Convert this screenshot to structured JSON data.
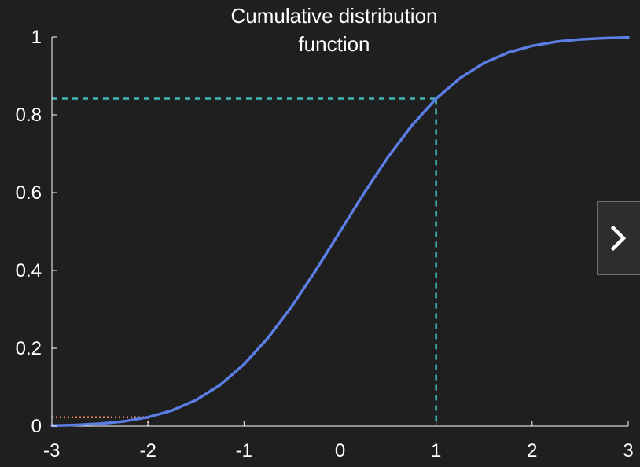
{
  "chart_data": {
    "type": "line",
    "title_lines": [
      "Cumulative distribution",
      "function"
    ],
    "xlabel": "",
    "ylabel": "",
    "xlim": [
      -3,
      3
    ],
    "ylim": [
      0,
      1
    ],
    "x_ticks": [
      -3,
      -2,
      -1,
      0,
      1,
      2,
      3
    ],
    "x_tick_labels": [
      "-3",
      "-2",
      "-1",
      "0",
      "1",
      "2",
      "3"
    ],
    "y_ticks": [
      0,
      0.2,
      0.4,
      0.6,
      0.8,
      1
    ],
    "y_tick_labels": [
      "0",
      "0.2",
      "0.4",
      "0.6",
      "0.8",
      "1"
    ],
    "grid": false,
    "series": [
      {
        "color": "#5b7ee5",
        "x": [
          -3,
          -2.75,
          -2.5,
          -2.25,
          -2,
          -1.75,
          -1.5,
          -1.25,
          -1,
          -0.75,
          -0.5,
          -0.25,
          0,
          0.25,
          0.5,
          0.75,
          1,
          1.25,
          1.5,
          1.75,
          2,
          2.25,
          2.5,
          2.75,
          3
        ],
        "y": [
          0.0013,
          0.003,
          0.0062,
          0.0122,
          0.0228,
          0.0401,
          0.0668,
          0.1056,
          0.1587,
          0.2266,
          0.3085,
          0.4013,
          0.5,
          0.5987,
          0.6915,
          0.7734,
          0.8413,
          0.8944,
          0.9332,
          0.9599,
          0.9772,
          0.9878,
          0.9938,
          0.997,
          0.9987
        ]
      }
    ],
    "annotations": [
      {
        "x": 1,
        "y": 0.8413,
        "color": "#3fb8b5",
        "style": "dashed"
      },
      {
        "x": -2,
        "y": 0.0228,
        "color": "#e8845e",
        "style": "dotted"
      }
    ]
  },
  "controls": {
    "next_icon": "chevron-right-icon"
  },
  "colors": {
    "background": "#1f1f1f",
    "axis": "#ffffff",
    "text": "#ffffff"
  }
}
